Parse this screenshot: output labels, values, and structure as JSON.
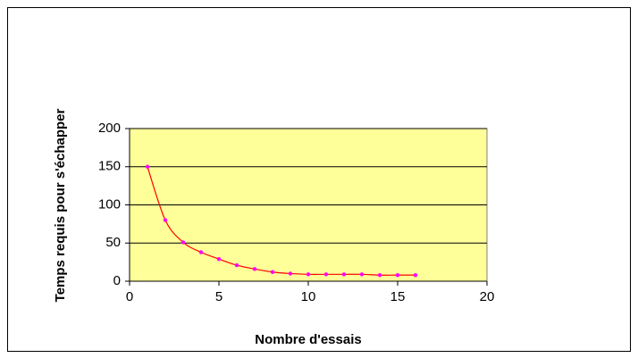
{
  "chart_data": {
    "type": "line",
    "x_label": "Nombre d'essais",
    "y_label": "Temps requis pour s'échapper",
    "x": [
      1,
      2,
      3,
      4,
      5,
      6,
      7,
      8,
      9,
      10,
      11,
      12,
      13,
      14,
      15,
      16
    ],
    "series": [
      {
        "color": "#ff0000",
        "marker_color": "#ff00ff",
        "values": [
          150,
          80,
          51,
          38,
          29,
          21,
          16,
          12,
          10,
          9,
          9,
          9,
          9,
          8,
          8,
          8
        ]
      }
    ],
    "xlim": [
      0,
      20
    ],
    "xticks": [
      0,
      5,
      10,
      15,
      20
    ],
    "ylim": [
      0,
      200
    ],
    "yticks": [
      0,
      50,
      100,
      150,
      200
    ],
    "grid": true,
    "plot_background": "#ffff99"
  }
}
